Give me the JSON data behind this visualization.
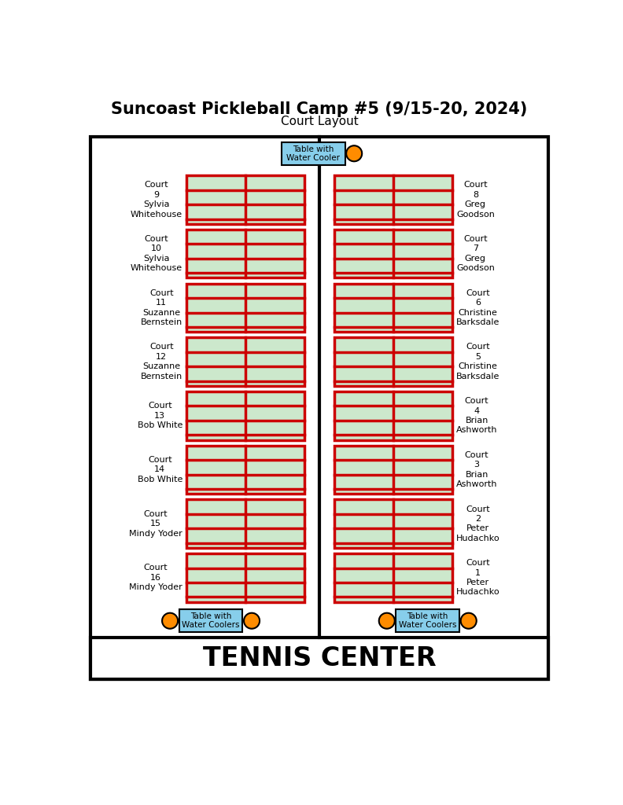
{
  "title": "Suncoast Pickleball Camp #5 (9/15-20, 2024)",
  "subtitle": "Court Layout",
  "tennis_center_label": "TENNIS CENTER",
  "court_fill": "#cce8cc",
  "court_edge": "#cc0000",
  "outer_bg": "#ffffff",
  "table_fill": "#87ceeb",
  "table_edge": "#000000",
  "cooler_fill": "#ff8c00",
  "border_color": "#000000",
  "left_courts": [
    {
      "num": "9",
      "name": "Sylvia\nWhitehouse"
    },
    {
      "num": "10",
      "name": "Sylvia\nWhitehouse"
    },
    {
      "num": "11",
      "name": "Suzanne\nBernstein"
    },
    {
      "num": "12",
      "name": "Suzanne\nBernstein"
    },
    {
      "num": "13",
      "name": "Bob White"
    },
    {
      "num": "14",
      "name": "Bob White"
    },
    {
      "num": "15",
      "name": "Mindy Yoder"
    },
    {
      "num": "16",
      "name": "Mindy Yoder"
    }
  ],
  "right_courts": [
    {
      "num": "8",
      "name": "Greg\nGoodson"
    },
    {
      "num": "7",
      "name": "Greg\nGoodson"
    },
    {
      "num": "6",
      "name": "Christine\nBarksdale"
    },
    {
      "num": "5",
      "name": "Christine\nBarksdale"
    },
    {
      "num": "4",
      "name": "Brian\nAshworth"
    },
    {
      "num": "3",
      "name": "Brian\nAshworth"
    },
    {
      "num": "2",
      "name": "Peter\nHudachko"
    },
    {
      "num": "1",
      "name": "Peter\nHudachko"
    }
  ],
  "fig_w": 7.92,
  "fig_h": 10.24,
  "dpi": 100
}
